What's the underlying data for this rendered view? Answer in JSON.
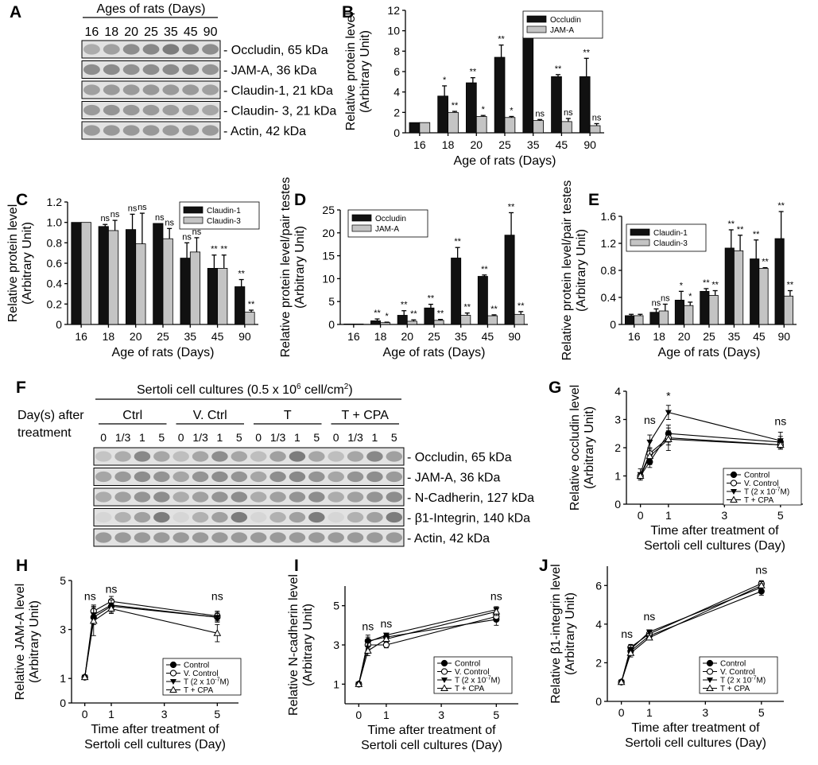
{
  "colors": {
    "black_bar": "#111111",
    "grey_bar": "#c4c4c4",
    "blot_bg": "#e2e2e2",
    "band": "#6a6a6a"
  },
  "panel_A": {
    "letter": "A",
    "header": "Ages of rats (Days)",
    "lanes": [
      "16",
      "18",
      "20",
      "25",
      "35",
      "45",
      "90"
    ],
    "rows": [
      {
        "label": "- Occludin, 65 kDa",
        "intensity": [
          0.45,
          0.55,
          0.7,
          0.75,
          0.85,
          0.75,
          0.7
        ]
      },
      {
        "label": "- JAM-A, 36 kDa",
        "intensity": [
          0.7,
          0.72,
          0.68,
          0.7,
          0.72,
          0.7,
          0.65
        ]
      },
      {
        "label": "- Claudin-1, 21 kDa",
        "intensity": [
          0.55,
          0.6,
          0.6,
          0.62,
          0.6,
          0.6,
          0.55
        ]
      },
      {
        "label": "- Claudin- 3, 21 kDa",
        "intensity": [
          0.6,
          0.65,
          0.62,
          0.6,
          0.58,
          0.55,
          0.5
        ]
      },
      {
        "label": "- Actin, 42 kDa",
        "intensity": [
          0.6,
          0.62,
          0.62,
          0.62,
          0.6,
          0.6,
          0.6
        ]
      }
    ]
  },
  "panel_F": {
    "letter": "F",
    "header": "Sertoli cell cultures (0.5 x 10",
    "header_sup": "6",
    "header_tail": " cell/cm",
    "header_sup2": "2",
    "header_end": ")",
    "day_label_1": "Day(s) after",
    "day_label_2": "treatment",
    "groups": [
      "Ctrl",
      "V. Ctrl",
      "T",
      "T + CPA"
    ],
    "timepoints": [
      "0",
      "1/3",
      "1",
      "5"
    ],
    "rows": [
      {
        "label": "- Occludin, 65 kDa",
        "intensity": [
          0.25,
          0.45,
          0.75,
          0.5,
          0.3,
          0.5,
          0.7,
          0.5,
          0.3,
          0.55,
          0.85,
          0.5,
          0.3,
          0.5,
          0.75,
          0.55
        ]
      },
      {
        "label": "- JAM-A, 36 kDa",
        "intensity": [
          0.5,
          0.6,
          0.7,
          0.65,
          0.5,
          0.65,
          0.7,
          0.65,
          0.5,
          0.7,
          0.75,
          0.65,
          0.5,
          0.65,
          0.7,
          0.6
        ]
      },
      {
        "label": "- N-Cadherin, 127 kDa",
        "intensity": [
          0.45,
          0.55,
          0.65,
          0.7,
          0.45,
          0.55,
          0.65,
          0.7,
          0.45,
          0.55,
          0.65,
          0.7,
          0.45,
          0.55,
          0.65,
          0.7
        ]
      },
      {
        "label": "- β1-Integrin, 140 kDa",
        "intensity": [
          0.1,
          0.4,
          0.55,
          0.85,
          0.1,
          0.4,
          0.55,
          0.85,
          0.1,
          0.4,
          0.55,
          0.85,
          0.1,
          0.4,
          0.55,
          0.85
        ]
      },
      {
        "label": "- Actin, 42 kDa",
        "intensity": [
          0.6,
          0.6,
          0.6,
          0.6,
          0.6,
          0.6,
          0.6,
          0.6,
          0.6,
          0.6,
          0.6,
          0.6,
          0.6,
          0.6,
          0.6,
          0.6
        ]
      }
    ]
  },
  "chart_data": [
    {
      "panel": "B",
      "type": "bar",
      "categories": [
        "16",
        "18",
        "20",
        "25",
        "35",
        "45",
        "90"
      ],
      "ylim": [
        0,
        12
      ],
      "yticks": [
        "0",
        "2",
        "4",
        "6",
        "8",
        "10",
        "12"
      ],
      "ylabel": "Relative protein level",
      "ylabel2": "(Arbitrary Unit)",
      "xlabel": "Age of rats (Days)",
      "series": [
        {
          "name": "Occludin",
          "values": [
            1,
            3.6,
            4.9,
            7.4,
            9.4,
            5.5,
            5.5
          ],
          "err": [
            0,
            1.0,
            0.5,
            1.2,
            1.3,
            0.2,
            1.8
          ],
          "sig": [
            "",
            "*",
            "**",
            "**",
            "**",
            "**",
            "**"
          ]
        },
        {
          "name": "JAM-A",
          "values": [
            1,
            2.0,
            1.6,
            1.5,
            1.2,
            1.1,
            0.7
          ],
          "err": [
            0,
            0.1,
            0.1,
            0.1,
            0.1,
            0.3,
            0.2
          ],
          "sig": [
            "",
            "**",
            "*",
            "*",
            "ns",
            "ns",
            "ns"
          ]
        }
      ]
    },
    {
      "panel": "C",
      "type": "bar",
      "categories": [
        "16",
        "18",
        "20",
        "25",
        "35",
        "45",
        "90"
      ],
      "ylim": [
        0,
        1.2
      ],
      "yticks": [
        "0",
        "0.2",
        "0.4",
        "0.6",
        "0.8",
        "1.0",
        "1.2"
      ],
      "ylabel": "Relative protein level",
      "ylabel2": "(Arbitrary Unit)",
      "xlabel": "Age of rats (Days)",
      "series": [
        {
          "name": "Claudin-1",
          "values": [
            1.0,
            0.96,
            0.93,
            0.99,
            0.65,
            0.55,
            0.37
          ],
          "err": [
            0,
            0.02,
            0.15,
            0,
            0.15,
            0.13,
            0.07
          ],
          "sig": [
            "",
            "ns",
            "ns",
            "ns",
            "ns",
            "**",
            "**"
          ]
        },
        {
          "name": "Claudin-3",
          "values": [
            1.0,
            0.92,
            0.79,
            0.84,
            0.71,
            0.55,
            0.12
          ],
          "err": [
            0,
            0.1,
            0.3,
            0.1,
            0.14,
            0.13,
            0.02
          ],
          "sig": [
            "",
            "ns",
            "ns",
            "ns",
            "ns",
            "**",
            "**"
          ]
        }
      ]
    },
    {
      "panel": "D",
      "type": "bar",
      "categories": [
        "16",
        "18",
        "20",
        "25",
        "35",
        "45",
        "90"
      ],
      "ylim": [
        0,
        25
      ],
      "yticks": [
        "0",
        "5",
        "10",
        "15",
        "20",
        "25"
      ],
      "ylabel": "Relative protein level/pair testes",
      "ylabel2": "(Arbitrary Unit)",
      "xlabel": "Age of rats (Days)",
      "series": [
        {
          "name": "Occludin",
          "values": [
            0.1,
            0.8,
            2.0,
            3.6,
            14.5,
            10.5,
            19.5
          ],
          "err": [
            0,
            0.4,
            1.0,
            0.8,
            2.3,
            0.3,
            4.9
          ],
          "sig": [
            "",
            "**",
            "**",
            "**",
            "**",
            "**",
            "**"
          ]
        },
        {
          "name": "JAM-A",
          "values": [
            0.1,
            0.4,
            0.7,
            0.9,
            2.0,
            1.9,
            2.2
          ],
          "err": [
            0,
            0.1,
            0.3,
            0.2,
            0.5,
            0.2,
            0.6
          ],
          "sig": [
            "",
            "*",
            "**",
            "**",
            "**",
            "**",
            "**"
          ]
        }
      ]
    },
    {
      "panel": "E",
      "type": "bar",
      "categories": [
        "16",
        "18",
        "20",
        "25",
        "35",
        "45",
        "90"
      ],
      "ylim": [
        0,
        1.6
      ],
      "yticks": [
        "0",
        "0.4",
        "0.8",
        "1.2",
        "1.6"
      ],
      "ylabel": "Relative protein level/pair testes",
      "ylabel2": "(Arbitrary Unit)",
      "xlabel": "Age of rats (Days)",
      "series": [
        {
          "name": "Claudin-1",
          "values": [
            0.13,
            0.18,
            0.36,
            0.49,
            1.13,
            0.97,
            1.27
          ],
          "err": [
            0.02,
            0.05,
            0.13,
            0.04,
            0.27,
            0.28,
            0.4
          ],
          "sig": [
            "",
            "ns",
            "*",
            "**",
            "**",
            "**",
            "**"
          ]
        },
        {
          "name": "Claudin-3",
          "values": [
            0.13,
            0.2,
            0.28,
            0.43,
            1.09,
            0.83,
            0.42
          ],
          "err": [
            0.02,
            0.1,
            0.05,
            0.07,
            0.23,
            0.01,
            0.08
          ],
          "sig": [
            "",
            "ns",
            "*",
            "**",
            "**",
            "**",
            "**"
          ]
        }
      ]
    },
    {
      "panel": "G",
      "type": "line",
      "x": [
        0,
        0.333,
        1,
        5
      ],
      "xlim": [
        -0.5,
        5.8
      ],
      "xticks": [
        "0",
        "1",
        "3",
        "5"
      ],
      "xtickvals": [
        0,
        1,
        3,
        5
      ],
      "ylim": [
        0,
        4
      ],
      "yticks": [
        "0",
        "1",
        "2",
        "3",
        "4"
      ],
      "ylabel": "Relative occludin level",
      "ylabel2": "(Arbitrary Unit)",
      "xlabel": "Time after treatment of",
      "xlabel2": "Sertoli cell cultures (Day)",
      "annotations": [
        {
          "x": 0.333,
          "y": 2.85,
          "text": "ns"
        },
        {
          "x": 1,
          "y": 3.7,
          "text": "*"
        },
        {
          "x": 5,
          "y": 2.8,
          "text": "ns"
        }
      ],
      "series": [
        {
          "name": "Control",
          "marker": "filled-circle",
          "values": [
            1.0,
            1.5,
            2.5,
            2.2
          ],
          "err": [
            0.1,
            0.2,
            0.3,
            0.2
          ]
        },
        {
          "name": "V. Control",
          "marker": "open-circle",
          "values": [
            1.0,
            1.8,
            2.35,
            2.1
          ],
          "err": [
            0.1,
            0.2,
            0.25,
            0.1
          ]
        },
        {
          "name": "T (2 x 10",
          "name_sup": "-7",
          "name_end": "M)",
          "marker": "filled-down-triangle",
          "values": [
            1.05,
            2.2,
            3.25,
            2.25
          ],
          "err": [
            0.2,
            0.25,
            0.25,
            0.3
          ]
        },
        {
          "name": "T + CPA",
          "marker": "open-up-triangle",
          "values": [
            1.0,
            1.7,
            2.3,
            2.1
          ],
          "err": [
            0.1,
            0.3,
            0.4,
            0.15
          ]
        }
      ]
    },
    {
      "panel": "H",
      "type": "line",
      "x": [
        0,
        0.333,
        1,
        5
      ],
      "xlim": [
        -0.5,
        5.8
      ],
      "xticks": [
        "0",
        "1",
        "3",
        "5"
      ],
      "xtickvals": [
        0,
        1,
        3,
        5
      ],
      "ylim": [
        0,
        5
      ],
      "yticks": [
        "0",
        "1",
        "3",
        "5"
      ],
      "ytickvals": [
        0,
        1,
        3,
        5
      ],
      "ylabel": "Relative JAM-A level",
      "ylabel2": "(Arbitrary Unit)",
      "xlabel": "Time after treatment of",
      "xlabel2": "Sertoli cell cultures (Day)",
      "annotations": [
        {
          "x": 0.2,
          "y": 4.2,
          "text": "ns"
        },
        {
          "x": 1,
          "y": 4.5,
          "text": "ns"
        },
        {
          "x": 5,
          "y": 4.2,
          "text": "ns"
        }
      ],
      "series": [
        {
          "name": "Control",
          "marker": "filled-circle",
          "values": [
            1.05,
            3.5,
            3.95,
            3.5
          ],
          "err": [
            0.05,
            0.3,
            0.25,
            0.15
          ]
        },
        {
          "name": "V. Control",
          "marker": "open-circle",
          "values": [
            1.05,
            3.75,
            4.15,
            3.55
          ],
          "err": [
            0.05,
            0.25,
            0.2,
            0.2
          ]
        },
        {
          "name": "T (2 x 10",
          "name_sup": "-7",
          "name_end": "M)",
          "marker": "filled-down-triangle",
          "values": [
            1.05,
            3.6,
            4.0,
            3.5
          ],
          "err": [
            0.05,
            0.3,
            0.2,
            0.2
          ]
        },
        {
          "name": "T + CPA",
          "marker": "open-up-triangle",
          "values": [
            1.05,
            3.35,
            3.85,
            2.85
          ],
          "err": [
            0.05,
            0.6,
            0.2,
            0.35
          ]
        }
      ]
    },
    {
      "panel": "I",
      "type": "line",
      "x": [
        0,
        0.333,
        1,
        5
      ],
      "xlim": [
        -0.5,
        5.8
      ],
      "xticks": [
        "0",
        "1",
        "3",
        "5"
      ],
      "xtickvals": [
        0,
        1,
        3,
        5
      ],
      "ylim": [
        0,
        6
      ],
      "yticks": [
        "1",
        "3",
        "5"
      ],
      "ytickvals": [
        1,
        3,
        5
      ],
      "ylabel": "Relative N-cadherin level",
      "ylabel2": "(Arbitrary Unit)",
      "xlabel": "Time after treatment of",
      "xlabel2": "Sertoli cell cultures (Day)",
      "annotations": [
        {
          "x": 0.333,
          "y": 3.75,
          "text": "ns"
        },
        {
          "x": 1,
          "y": 3.9,
          "text": "ns"
        },
        {
          "x": 5,
          "y": 5.3,
          "text": "ns"
        }
      ],
      "series": [
        {
          "name": "Control",
          "marker": "filled-circle",
          "values": [
            1.0,
            3.2,
            3.4,
            4.3
          ],
          "err": [
            0.05,
            0.3,
            0.15,
            0.3
          ]
        },
        {
          "name": "V. Control",
          "marker": "open-circle",
          "values": [
            1.0,
            3.0,
            3.0,
            4.45
          ],
          "err": [
            0.05,
            0.2,
            0.15,
            0.25
          ]
        },
        {
          "name": "T (2 x 10",
          "name_sup": "-7",
          "name_end": "M)",
          "marker": "filled-down-triangle",
          "values": [
            1.0,
            3.15,
            3.5,
            4.8
          ],
          "err": [
            0.05,
            0.25,
            0.1,
            0.15
          ]
        },
        {
          "name": "T + CPA",
          "marker": "open-up-triangle",
          "values": [
            1.0,
            2.7,
            3.3,
            4.7
          ],
          "err": [
            0.05,
            0.25,
            0.15,
            0.2
          ]
        }
      ]
    },
    {
      "panel": "J",
      "type": "line",
      "x": [
        0,
        0.333,
        1,
        5
      ],
      "xlim": [
        -0.5,
        5.8
      ],
      "xticks": [
        "0",
        "1",
        "3",
        "5"
      ],
      "xtickvals": [
        0,
        1,
        3,
        5
      ],
      "ylim": [
        0,
        7
      ],
      "yticks": [
        "0",
        "2",
        "4",
        "6"
      ],
      "ytickvals": [
        0,
        2,
        4,
        6
      ],
      "ylabel": "Relative β1-integrin level",
      "ylabel2": "(Arbitrary Unit)",
      "xlabel": "Time after treatment of",
      "xlabel2": "Sertoli cell cultures (Day)",
      "annotations": [
        {
          "x": 0.2,
          "y": 3.3,
          "text": "ns"
        },
        {
          "x": 1,
          "y": 4.2,
          "text": "ns"
        },
        {
          "x": 5,
          "y": 6.6,
          "text": "ns"
        }
      ],
      "series": [
        {
          "name": "Control",
          "marker": "filled-circle",
          "values": [
            1.0,
            2.6,
            3.4,
            5.7
          ],
          "err": [
            0.05,
            0.15,
            0.1,
            0.2
          ]
        },
        {
          "name": "V. Control",
          "marker": "open-circle",
          "values": [
            1.0,
            2.8,
            3.5,
            6.1
          ],
          "err": [
            0.05,
            0.15,
            0.1,
            0.15
          ]
        },
        {
          "name": "T (2 x 10",
          "name_sup": "-7",
          "name_end": "M)",
          "marker": "filled-down-triangle",
          "values": [
            1.0,
            2.7,
            3.6,
            5.9
          ],
          "err": [
            0.05,
            0.2,
            0.1,
            0.2
          ]
        },
        {
          "name": "T + CPA",
          "marker": "open-up-triangle",
          "values": [
            1.0,
            2.5,
            3.3,
            6.0
          ],
          "err": [
            0.05,
            0.2,
            0.1,
            0.2
          ]
        }
      ]
    }
  ]
}
